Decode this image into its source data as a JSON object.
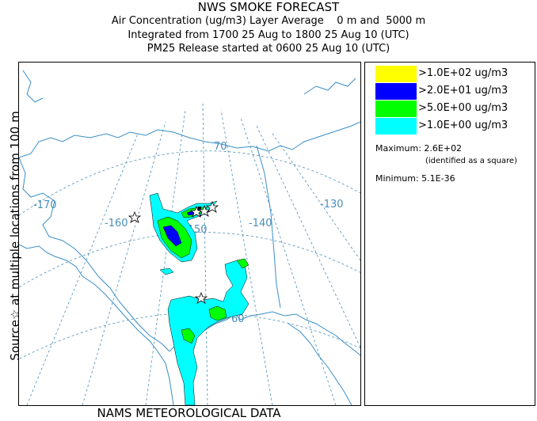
{
  "header": {
    "title": "NWS SMOKE FORECAST",
    "line2": "Air Concentration (ug/m3) Layer Average    0 m and  5000 m",
    "line3": "Integrated from 1700 25 Aug to 1800 25 Aug 10 (UTC)",
    "line4": "PM25 Release started at 0600 25 Aug 10 (UTC)"
  },
  "side_label": "Source☆  at multiple locations    from   100 m",
  "bottom_label": "NAMS METEOROLOGICAL DATA",
  "map": {
    "lon_labels": [
      "-170",
      "-160",
      "-150",
      "-140",
      "-130"
    ],
    "lat_labels": [
      "70",
      "60",
      "50"
    ],
    "colors": {
      "coast": "#3a8ec8",
      "grid": "#4a8fb8"
    }
  },
  "legend": {
    "items": [
      {
        "label": ">1.0E+02 ug/m3",
        "color": "#ffff00"
      },
      {
        "label": ">2.0E+01 ug/m3",
        "color": "#0000ff"
      },
      {
        "label": ">5.0E+00 ug/m3",
        "color": "#00ff00"
      },
      {
        "label": ">1.0E+00 ug/m3",
        "color": "#00ffff"
      }
    ],
    "maximum_label": "Maximum: 2.6E+02",
    "maximum_note": "(identified as a square)",
    "minimum_label": "Minimum: 5.1E-36"
  }
}
